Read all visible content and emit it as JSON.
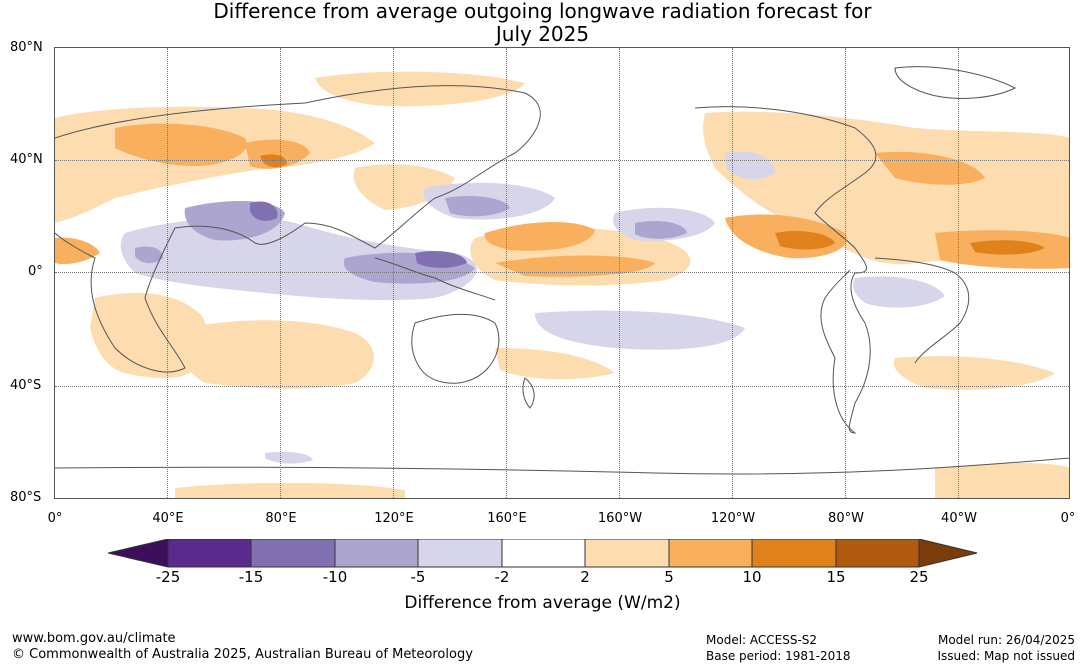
{
  "title": {
    "line1": "Difference from average outgoing longwave radiation forecast for",
    "line2": "July 2025"
  },
  "axes": {
    "lat_labels": [
      "80°N",
      "40°N",
      "0°",
      "40°S",
      "80°S"
    ],
    "lon_labels": [
      "0°",
      "40°E",
      "80°E",
      "120°E",
      "160°E",
      "160°W",
      "120°W",
      "80°W",
      "40°W",
      "0°"
    ]
  },
  "colorbar": {
    "ticks": [
      "-25",
      "-15",
      "-10",
      "-5",
      "-2",
      "2",
      "5",
      "10",
      "15",
      "25"
    ],
    "label": "Difference from average (W/m2)",
    "colors": [
      "#3b0f5c",
      "#5a2a8c",
      "#8070b0",
      "#aba5cf",
      "#d6d5ea",
      "#ffffff",
      "#fddcaf",
      "#f9b05e",
      "#e0821c",
      "#b05a10",
      "#7a3d0a"
    ]
  },
  "footer": {
    "website": "www.bom.gov.au/climate",
    "copyright": "© Commonwealth of Australia 2025, Australian Bureau of Meteorology",
    "model": "Model: ACCESS-S2",
    "base_period": "Base period: 1981-2018",
    "model_run": "Model run: 26/04/2025",
    "issued": "Issued: Map not issued"
  }
}
